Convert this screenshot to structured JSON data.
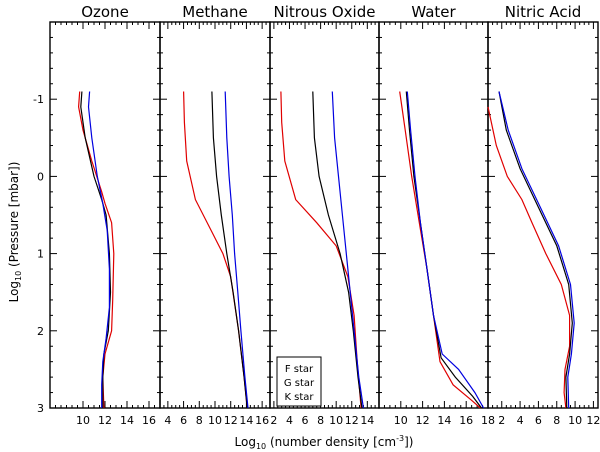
{
  "chart_data": {
    "type": "line",
    "ylabel_prefix": "Log",
    "ylabel_sub": "10",
    "ylabel_rest": " (Pressure [mbar])",
    "xlabel_prefix": "Log",
    "xlabel_sub": "10",
    "xlabel_mid": " (number density [cm",
    "xlabel_sup": "-3",
    "xlabel_end": "])",
    "ylim": [
      3,
      -2
    ],
    "yticks": [
      -1,
      0,
      1,
      2,
      3
    ],
    "legend": [
      {
        "label": "F star",
        "color": "#e00000"
      },
      {
        "label": "G star",
        "color": "#000000"
      },
      {
        "label": "K star",
        "color": "#0000e0"
      }
    ],
    "panels": [
      {
        "title": "Ozone",
        "xlim": [
          7,
          17
        ],
        "xticks": [
          10,
          12,
          14,
          16
        ],
        "series": [
          {
            "name": "F star",
            "color": "#e00000",
            "points": [
              [
                9.7,
                -1.1
              ],
              [
                9.6,
                -0.9
              ],
              [
                10.0,
                -0.6
              ],
              [
                10.8,
                -0.2
              ],
              [
                11.7,
                0.2
              ],
              [
                12.0,
                0.35
              ],
              [
                12.6,
                0.6
              ],
              [
                12.8,
                1.0
              ],
              [
                12.7,
                1.6
              ],
              [
                12.6,
                2.0
              ],
              [
                12.0,
                2.3
              ],
              [
                11.8,
                2.6
              ],
              [
                11.9,
                3.0
              ]
            ]
          },
          {
            "name": "G star",
            "color": "#000000",
            "points": [
              [
                9.9,
                -1.1
              ],
              [
                9.8,
                -0.9
              ],
              [
                10.2,
                -0.5
              ],
              [
                11.0,
                0.0
              ],
              [
                11.7,
                0.3
              ],
              [
                12.1,
                0.5
              ],
              [
                12.4,
                1.0
              ],
              [
                12.5,
                1.5
              ],
              [
                12.3,
                2.0
              ],
              [
                11.9,
                2.3
              ],
              [
                11.8,
                2.6
              ],
              [
                11.8,
                3.0
              ]
            ]
          },
          {
            "name": "K star",
            "color": "#0000e0",
            "points": [
              [
                10.6,
                -1.1
              ],
              [
                10.5,
                -0.9
              ],
              [
                10.8,
                -0.5
              ],
              [
                11.3,
                0.0
              ],
              [
                11.8,
                0.35
              ],
              [
                12.2,
                0.7
              ],
              [
                12.4,
                1.2
              ],
              [
                12.4,
                1.7
              ],
              [
                12.1,
                2.1
              ],
              [
                11.8,
                2.4
              ],
              [
                11.7,
                2.7
              ],
              [
                11.7,
                3.0
              ]
            ]
          }
        ]
      },
      {
        "title": "Methane",
        "xlim": [
          3,
          17
        ],
        "xticks": [
          4,
          6,
          8,
          10,
          12,
          14,
          16
        ],
        "series": [
          {
            "name": "F star",
            "color": "#e00000",
            "points": [
              [
                6.0,
                -1.1
              ],
              [
                6.1,
                -0.7
              ],
              [
                6.4,
                -0.2
              ],
              [
                7.5,
                0.3
              ],
              [
                9.5,
                0.7
              ],
              [
                11.0,
                1.0
              ],
              [
                12.0,
                1.3
              ],
              [
                13.0,
                2.0
              ],
              [
                13.7,
                2.6
              ],
              [
                14.1,
                3.0
              ]
            ]
          },
          {
            "name": "G star",
            "color": "#000000",
            "points": [
              [
                9.6,
                -1.1
              ],
              [
                9.8,
                -0.5
              ],
              [
                10.2,
                0.0
              ],
              [
                10.8,
                0.5
              ],
              [
                11.5,
                1.0
              ],
              [
                12.3,
                1.5
              ],
              [
                13.0,
                2.0
              ],
              [
                13.7,
                2.6
              ],
              [
                14.1,
                3.0
              ]
            ]
          },
          {
            "name": "K star",
            "color": "#0000e0",
            "points": [
              [
                11.3,
                -1.1
              ],
              [
                11.5,
                -0.5
              ],
              [
                11.8,
                0.0
              ],
              [
                12.2,
                0.5
              ],
              [
                12.5,
                1.0
              ],
              [
                12.9,
                1.5
              ],
              [
                13.3,
                2.0
              ],
              [
                13.8,
                2.6
              ],
              [
                14.2,
                3.0
              ]
            ]
          }
        ]
      },
      {
        "title": "Nitrous Oxide",
        "xlim": [
          1.5,
          15.5
        ],
        "xticks": [
          2,
          4,
          6,
          8,
          10,
          12,
          14
        ],
        "series": [
          {
            "name": "F star",
            "color": "#e00000",
            "points": [
              [
                2.9,
                -1.1
              ],
              [
                3.0,
                -0.7
              ],
              [
                3.4,
                -0.2
              ],
              [
                4.8,
                0.3
              ],
              [
                7.5,
                0.6
              ],
              [
                10.0,
                0.9
              ],
              [
                11.5,
                1.3
              ],
              [
                12.3,
                1.8
              ],
              [
                12.7,
                2.4
              ],
              [
                13.2,
                3.0
              ]
            ]
          },
          {
            "name": "G star",
            "color": "#000000",
            "points": [
              [
                7.0,
                -1.1
              ],
              [
                7.2,
                -0.5
              ],
              [
                7.8,
                0.0
              ],
              [
                9.0,
                0.5
              ],
              [
                10.5,
                1.0
              ],
              [
                11.6,
                1.5
              ],
              [
                12.2,
                2.0
              ],
              [
                12.8,
                2.6
              ],
              [
                13.3,
                3.0
              ]
            ]
          },
          {
            "name": "K star",
            "color": "#0000e0",
            "points": [
              [
                9.5,
                -1.1
              ],
              [
                9.8,
                -0.5
              ],
              [
                10.3,
                0.0
              ],
              [
                10.8,
                0.5
              ],
              [
                11.3,
                1.0
              ],
              [
                11.8,
                1.5
              ],
              [
                12.3,
                2.0
              ],
              [
                12.9,
                2.6
              ],
              [
                13.5,
                3.0
              ]
            ]
          }
        ]
      },
      {
        "title": "Water",
        "xlim": [
          8,
          18
        ],
        "xticks": [
          10,
          12,
          14,
          16,
          18
        ],
        "series": [
          {
            "name": "F star",
            "color": "#e00000",
            "points": [
              [
                9.9,
                -1.1
              ],
              [
                10.4,
                -0.6
              ],
              [
                11.0,
                0.0
              ],
              [
                11.7,
                0.6
              ],
              [
                12.4,
                1.2
              ],
              [
                13.0,
                1.8
              ],
              [
                13.6,
                2.4
              ],
              [
                14.8,
                2.7
              ],
              [
                16.5,
                2.9
              ],
              [
                17.3,
                3.0
              ]
            ]
          },
          {
            "name": "G star",
            "color": "#000000",
            "points": [
              [
                10.5,
                -1.1
              ],
              [
                10.8,
                -0.6
              ],
              [
                11.2,
                0.0
              ],
              [
                11.8,
                0.6
              ],
              [
                12.4,
                1.2
              ],
              [
                13.0,
                1.8
              ],
              [
                13.7,
                2.35
              ],
              [
                15.0,
                2.6
              ],
              [
                16.6,
                2.85
              ],
              [
                17.4,
                3.0
              ]
            ]
          },
          {
            "name": "K star",
            "color": "#0000e0",
            "points": [
              [
                10.6,
                -1.1
              ],
              [
                10.9,
                -0.6
              ],
              [
                11.3,
                0.0
              ],
              [
                11.8,
                0.6
              ],
              [
                12.4,
                1.2
              ],
              [
                13.0,
                1.8
              ],
              [
                13.8,
                2.3
              ],
              [
                15.3,
                2.5
              ],
              [
                16.8,
                2.8
              ],
              [
                17.6,
                3.0
              ]
            ]
          }
        ]
      },
      {
        "title": "Nitric Acid",
        "xlim": [
          0.5,
          12.5
        ],
        "xticks": [
          2,
          4,
          6,
          8,
          10,
          12
        ],
        "series": [
          {
            "name": "F star",
            "color": "#e00000",
            "points": [
              [
                0.5,
                -0.9
              ],
              [
                1.4,
                -0.4
              ],
              [
                2.6,
                0.0
              ],
              [
                4.2,
                0.3
              ],
              [
                5.3,
                0.6
              ],
              [
                6.8,
                1.0
              ],
              [
                8.5,
                1.4
              ],
              [
                9.4,
                1.8
              ],
              [
                9.4,
                2.2
              ],
              [
                8.9,
                2.5
              ],
              [
                8.8,
                2.8
              ],
              [
                9.0,
                3.0
              ]
            ]
          },
          {
            "name": "G star",
            "color": "#000000",
            "points": [
              [
                1.7,
                -1.1
              ],
              [
                2.5,
                -0.6
              ],
              [
                4.0,
                -0.1
              ],
              [
                6.0,
                0.4
              ],
              [
                8.0,
                0.9
              ],
              [
                9.3,
                1.4
              ],
              [
                9.7,
                1.9
              ],
              [
                9.4,
                2.3
              ],
              [
                9.0,
                2.6
              ],
              [
                9.1,
                3.0
              ]
            ]
          },
          {
            "name": "K star",
            "color": "#0000e0",
            "points": [
              [
                1.7,
                -1.1
              ],
              [
                2.7,
                -0.6
              ],
              [
                4.2,
                -0.1
              ],
              [
                6.2,
                0.4
              ],
              [
                8.2,
                0.9
              ],
              [
                9.5,
                1.4
              ],
              [
                9.9,
                1.9
              ],
              [
                9.6,
                2.3
              ],
              [
                9.2,
                2.6
              ],
              [
                9.3,
                3.0
              ]
            ]
          }
        ]
      }
    ]
  }
}
